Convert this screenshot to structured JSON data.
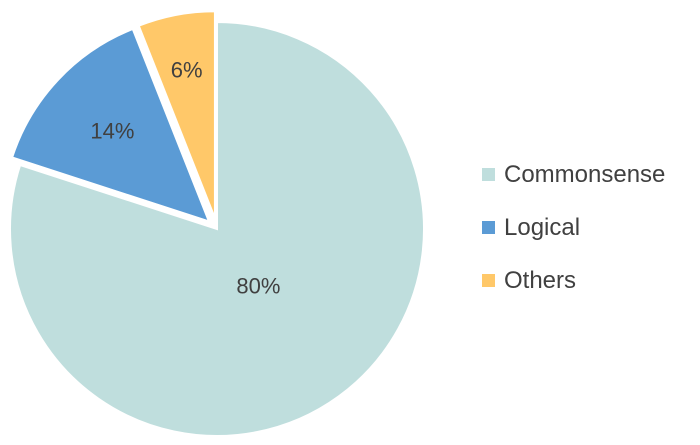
{
  "chart_data": {
    "type": "pie",
    "title": "",
    "categories": [
      "Commonsense",
      "Logical",
      "Others"
    ],
    "values": [
      80,
      14,
      6
    ],
    "labels": [
      "80%",
      "14%",
      "6%"
    ],
    "colors": [
      "#bfdedd",
      "#5b9bd5",
      "#ffc869"
    ],
    "exploded": [
      false,
      true,
      true
    ],
    "start_angle_deg": 0,
    "direction": "clockwise",
    "legend_position": "right"
  }
}
